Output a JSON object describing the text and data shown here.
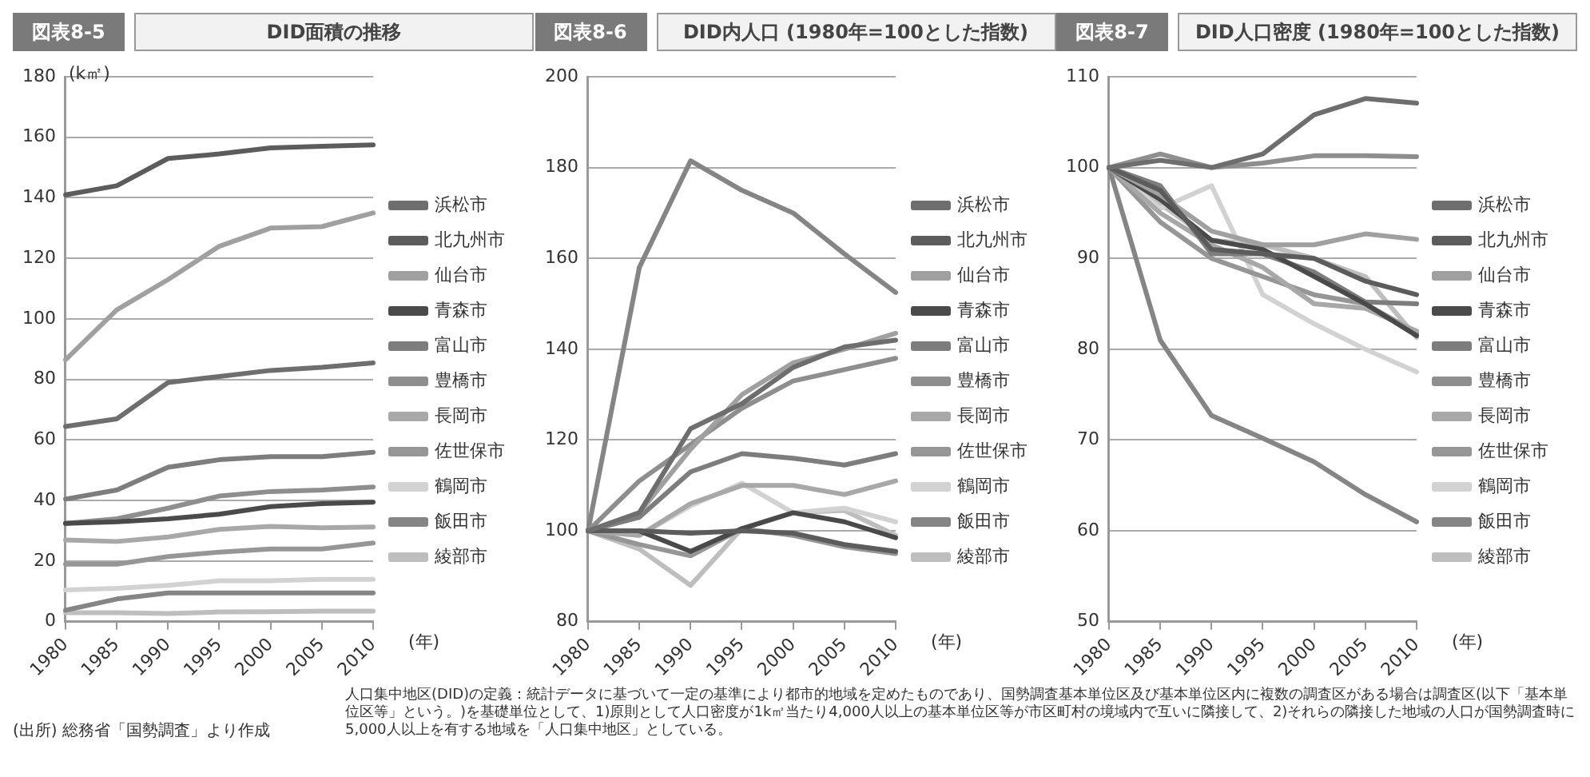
{
  "chart_data": [
    {
      "type": "line",
      "subtitle": "図表8-5",
      "title": "DID面積の推移",
      "ylabel": "(k㎡)",
      "xlabel": "(年)",
      "categories": [
        "1980",
        "1985",
        "1990",
        "1995",
        "2000",
        "2005",
        "2010"
      ],
      "ylim": [
        0,
        180
      ],
      "yticks": [
        0,
        20,
        40,
        60,
        80,
        100,
        120,
        140,
        160,
        180
      ],
      "grid": "y",
      "legend": "right",
      "annotations": [
        "(出所) 総務省「国勢調査」より作成",
        "人口集中地区(DID)の定義：統計データに基づいて一定の基準により都市的地域を定めたものであり、国勢調査基本単位区及び基本単位区内に複数の調査区がある場合は調査区(以下「基本単位区等」という。)を基礎単位として、1)原則として人口密度が1k㎡当たり4,000人以上の基本単位区等が市区町村の境域内で互いに隣接して、2)それらの隣接した地域の人口が国勢調査時に5,000人以上を有する地域を「人口集中地区」としている。"
      ],
      "series": [
        {
          "name": "浜松市",
          "color": "#6e6e6e",
          "values": [
            64.5,
            67,
            79,
            81,
            83,
            84,
            85.5
          ]
        },
        {
          "name": "北九州市",
          "color": "#5c5c5c",
          "values": [
            141,
            144,
            153,
            154.5,
            156.5,
            157,
            157.5
          ]
        },
        {
          "name": "仙台市",
          "color": "#a0a0a0",
          "values": [
            86.5,
            103,
            113,
            124,
            130,
            130.5,
            135
          ]
        },
        {
          "name": "青森市",
          "color": "#4a4a4a",
          "values": [
            32.5,
            33,
            34,
            35.5,
            38,
            39,
            39.5
          ]
        },
        {
          "name": "富山市",
          "color": "#7d7d7d",
          "values": [
            40.5,
            43.5,
            51,
            53.5,
            54.5,
            54.5,
            56
          ]
        },
        {
          "name": "豊橋市",
          "color": "#8e8e8e",
          "values": [
            32.5,
            34,
            37.5,
            41.5,
            43,
            43.5,
            44.5
          ]
        },
        {
          "name": "長岡市",
          "color": "#a8a8a8",
          "values": [
            27,
            26.5,
            28,
            30.5,
            31.5,
            31,
            31.3
          ]
        },
        {
          "name": "佐世保市",
          "color": "#969696",
          "values": [
            19,
            19,
            21.5,
            23,
            24,
            24,
            26
          ]
        },
        {
          "name": "鶴岡市",
          "color": "#d2d2d2",
          "values": [
            10.5,
            11,
            12,
            13.5,
            13.5,
            14,
            14
          ]
        },
        {
          "name": "飯田市",
          "color": "#858585",
          "values": [
            3.8,
            7.5,
            9.5,
            9.5,
            9.5,
            9.5,
            9.5
          ]
        },
        {
          "name": "綾部市",
          "color": "#bebebe",
          "values": [
            3,
            3,
            2.7,
            3.2,
            3.3,
            3.5,
            3.5
          ]
        }
      ]
    },
    {
      "type": "line",
      "subtitle": "図表8-6",
      "title": "DID内人口 (1980年=100とした指数)",
      "xlabel": "(年)",
      "categories": [
        "1980",
        "1985",
        "1990",
        "1995",
        "2000",
        "2005",
        "2010"
      ],
      "ylim": [
        80,
        200
      ],
      "yticks": [
        80,
        100,
        120,
        140,
        160,
        180,
        200
      ],
      "grid": "y",
      "legend": "right",
      "series": [
        {
          "name": "浜松市",
          "color": "#6e6e6e",
          "values": [
            100,
            104,
            122.5,
            128,
            136,
            140.5,
            142
          ]
        },
        {
          "name": "北九州市",
          "color": "#5c5c5c",
          "values": [
            100,
            100,
            99.5,
            100,
            99.5,
            97,
            95.5
          ]
        },
        {
          "name": "仙台市",
          "color": "#a0a0a0",
          "values": [
            100,
            104,
            118,
            130,
            137,
            140,
            143.5
          ]
        },
        {
          "name": "青森市",
          "color": "#4a4a4a",
          "values": [
            100,
            100,
            95.5,
            100.5,
            104,
            102,
            98.5
          ]
        },
        {
          "name": "富山市",
          "color": "#7d7d7d",
          "values": [
            100,
            103,
            113,
            117,
            116,
            114.5,
            117
          ]
        },
        {
          "name": "豊橋市",
          "color": "#8e8e8e",
          "values": [
            100,
            111,
            119,
            127,
            133,
            135.5,
            138
          ]
        },
        {
          "name": "長岡市",
          "color": "#a8a8a8",
          "values": [
            100,
            99,
            106,
            110,
            110,
            108,
            111
          ]
        },
        {
          "name": "佐世保市",
          "color": "#969696",
          "values": [
            100,
            97,
            94.5,
            100.5,
            99,
            96.5,
            95
          ]
        },
        {
          "name": "鶴岡市",
          "color": "#d2d2d2",
          "values": [
            100,
            99,
            105.5,
            110.5,
            104,
            105,
            102
          ]
        },
        {
          "name": "飯田市",
          "color": "#858585",
          "values": [
            100,
            158,
            181.5,
            175,
            170,
            161,
            152.5
          ]
        },
        {
          "name": "綾部市",
          "color": "#bebebe",
          "values": [
            100,
            96,
            88,
            100.5,
            104,
            104.5,
            99
          ]
        }
      ]
    },
    {
      "type": "line",
      "subtitle": "図表8-7",
      "title": "DID人口密度 (1980年=100とした指数)",
      "xlabel": "(年)",
      "categories": [
        "1980",
        "1985",
        "1990",
        "1995",
        "2000",
        "2005",
        "2010"
      ],
      "ylim": [
        50,
        110
      ],
      "yticks": [
        50,
        60,
        70,
        80,
        90,
        100,
        110
      ],
      "grid": "y",
      "legend": "right",
      "series": [
        {
          "name": "浜松市",
          "color": "#6e6e6e",
          "values": [
            100,
            100.8,
            100,
            101.5,
            105.8,
            107.6,
            107.1
          ]
        },
        {
          "name": "北九州市",
          "color": "#5c5c5c",
          "values": [
            100,
            97.5,
            91,
            90.5,
            90,
            87.5,
            86
          ]
        },
        {
          "name": "仙台市",
          "color": "#a0a0a0",
          "values": [
            100,
            97,
            93,
            91.5,
            91.5,
            92.7,
            92.1
          ]
        },
        {
          "name": "青森市",
          "color": "#4a4a4a",
          "values": [
            100,
            96.5,
            92,
            91,
            88,
            85,
            81.5
          ]
        },
        {
          "name": "富山市",
          "color": "#7d7d7d",
          "values": [
            100,
            98,
            90.5,
            90.5,
            88.5,
            85.2,
            85
          ]
        },
        {
          "name": "豊橋市",
          "color": "#8e8e8e",
          "values": [
            100,
            101.5,
            100,
            100.5,
            101.3,
            101.3,
            101.2
          ]
        },
        {
          "name": "長岡市",
          "color": "#a8a8a8",
          "values": [
            100,
            95,
            91.5,
            89,
            85,
            84.5,
            82
          ]
        },
        {
          "name": "佐世保市",
          "color": "#969696",
          "values": [
            100,
            94,
            90,
            88,
            86,
            85,
            81.8
          ]
        },
        {
          "name": "鶴岡市",
          "color": "#d2d2d2",
          "values": [
            100,
            95.5,
            98,
            86,
            82.8,
            80,
            77.5
          ]
        },
        {
          "name": "飯田市",
          "color": "#858585",
          "values": [
            100,
            81,
            72.7,
            70.2,
            67.6,
            64,
            61
          ]
        },
        {
          "name": "綾部市",
          "color": "#bebebe",
          "values": [
            100,
            96,
            92,
            91.5,
            90,
            88,
            81.3
          ]
        }
      ]
    }
  ]
}
